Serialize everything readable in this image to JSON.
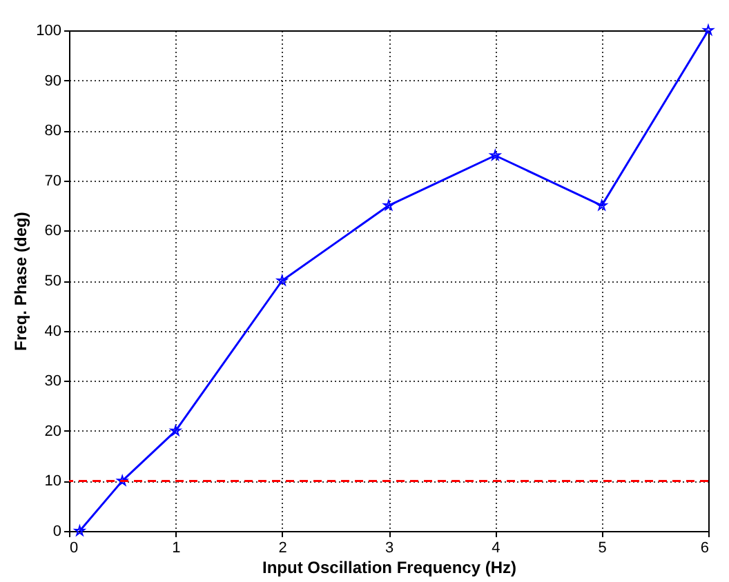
{
  "chart_data": {
    "type": "line",
    "xlabel": "Input Oscillation Frequency (Hz)",
    "ylabel": "Freq. Phase (deg)",
    "x": [
      0.1,
      0.5,
      1,
      2,
      3,
      4,
      5,
      6
    ],
    "series": [
      {
        "color": "#0000ff",
        "values": [
          0,
          10,
          20,
          50,
          65,
          75,
          65,
          100
        ]
      }
    ],
    "xlim": [
      0,
      6
    ],
    "xticks": [
      0,
      1,
      2,
      3,
      4,
      5,
      6
    ],
    "ylim": [
      0,
      100
    ],
    "yticks": [
      0,
      10,
      20,
      30,
      40,
      50,
      60,
      70,
      80,
      90,
      100
    ],
    "ref_lines": [
      {
        "axis": "y",
        "value": 10,
        "color": "#ff0000",
        "line_style": "dashed"
      }
    ],
    "grid": true,
    "marker": "star",
    "line_style": "solid"
  }
}
